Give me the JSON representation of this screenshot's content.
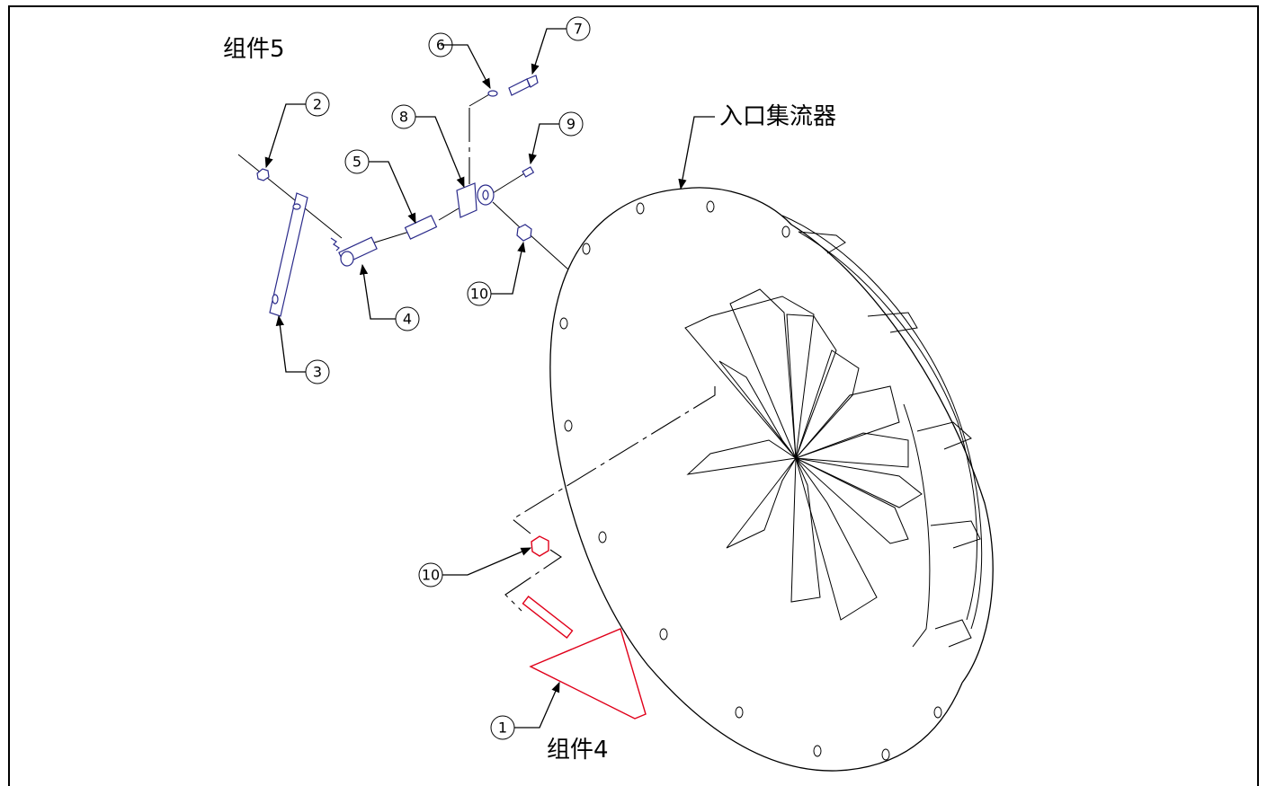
{
  "titles": {
    "assembly5": "组件5",
    "assembly4": "组件4",
    "inlet_collector": "入口集流器"
  },
  "callouts": [
    "1",
    "2",
    "3",
    "4",
    "5",
    "6",
    "7",
    "8",
    "9",
    "10",
    "10"
  ],
  "colors": {
    "line": "#000000",
    "hardware": "#2a2a8a",
    "highlight_part": "#e0001a"
  }
}
